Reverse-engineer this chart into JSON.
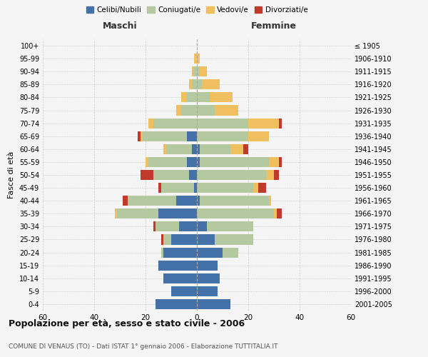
{
  "age_groups": [
    "0-4",
    "5-9",
    "10-14",
    "15-19",
    "20-24",
    "25-29",
    "30-34",
    "35-39",
    "40-44",
    "45-49",
    "50-54",
    "55-59",
    "60-64",
    "65-69",
    "70-74",
    "75-79",
    "80-84",
    "85-89",
    "90-94",
    "95-99",
    "100+"
  ],
  "birth_years": [
    "2001-2005",
    "1996-2000",
    "1991-1995",
    "1986-1990",
    "1981-1985",
    "1976-1980",
    "1971-1975",
    "1966-1970",
    "1961-1965",
    "1956-1960",
    "1951-1955",
    "1946-1950",
    "1941-1945",
    "1936-1940",
    "1931-1935",
    "1926-1930",
    "1921-1925",
    "1916-1920",
    "1911-1915",
    "1906-1910",
    "≤ 1905"
  ],
  "male": {
    "celibi": [
      16,
      10,
      13,
      15,
      13,
      10,
      7,
      15,
      8,
      1,
      3,
      4,
      2,
      4,
      0,
      0,
      0,
      0,
      0,
      0,
      0
    ],
    "coniugati": [
      0,
      0,
      0,
      0,
      1,
      3,
      9,
      16,
      19,
      13,
      14,
      15,
      10,
      17,
      17,
      6,
      4,
      2,
      1,
      0,
      0
    ],
    "vedovi": [
      0,
      0,
      0,
      0,
      0,
      0,
      0,
      1,
      0,
      0,
      0,
      1,
      1,
      1,
      2,
      2,
      2,
      1,
      1,
      1,
      0
    ],
    "divorziati": [
      0,
      0,
      0,
      0,
      0,
      1,
      1,
      0,
      2,
      1,
      5,
      0,
      0,
      1,
      0,
      0,
      0,
      0,
      0,
      0,
      0
    ]
  },
  "female": {
    "nubili": [
      13,
      8,
      9,
      8,
      10,
      7,
      4,
      0,
      1,
      0,
      0,
      1,
      1,
      0,
      0,
      0,
      0,
      0,
      0,
      0,
      0
    ],
    "coniugate": [
      0,
      0,
      0,
      0,
      6,
      15,
      18,
      30,
      27,
      22,
      27,
      27,
      12,
      20,
      20,
      7,
      5,
      2,
      1,
      0,
      0
    ],
    "vedove": [
      0,
      0,
      0,
      0,
      0,
      0,
      0,
      1,
      1,
      2,
      3,
      4,
      5,
      8,
      12,
      9,
      9,
      7,
      3,
      1,
      0
    ],
    "divorziate": [
      0,
      0,
      0,
      0,
      0,
      0,
      0,
      2,
      0,
      3,
      2,
      1,
      2,
      0,
      1,
      0,
      0,
      0,
      0,
      0,
      0
    ]
  },
  "colors": {
    "celibi": "#4472a8",
    "coniugati": "#b5c9a0",
    "vedovi": "#f0c060",
    "divorziati": "#c0392b"
  },
  "title": "Popolazione per età, sesso e stato civile - 2006",
  "subtitle": "COMUNE DI VENAUS (TO) - Dati ISTAT 1° gennaio 2006 - Elaborazione TUTTITALIA.IT",
  "xlabel_left": "Maschi",
  "xlabel_right": "Femmine",
  "ylabel_left": "Fasce di età",
  "xlim": 60,
  "bg_color": "#f5f5f5",
  "grid_color": "#cccccc",
  "legend_labels": [
    "Celibi/Nubili",
    "Coniugati/e",
    "Vedovi/e",
    "Divorziati/e"
  ]
}
